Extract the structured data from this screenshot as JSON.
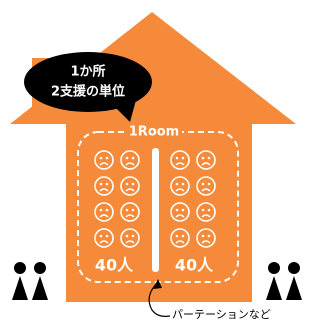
{
  "bubble": {
    "line1": "1か所",
    "line2": "2支援の単位"
  },
  "room": {
    "label": "1Room",
    "left_count": "40人",
    "right_count": "40人"
  },
  "annotation": "パーテーションなど"
}
